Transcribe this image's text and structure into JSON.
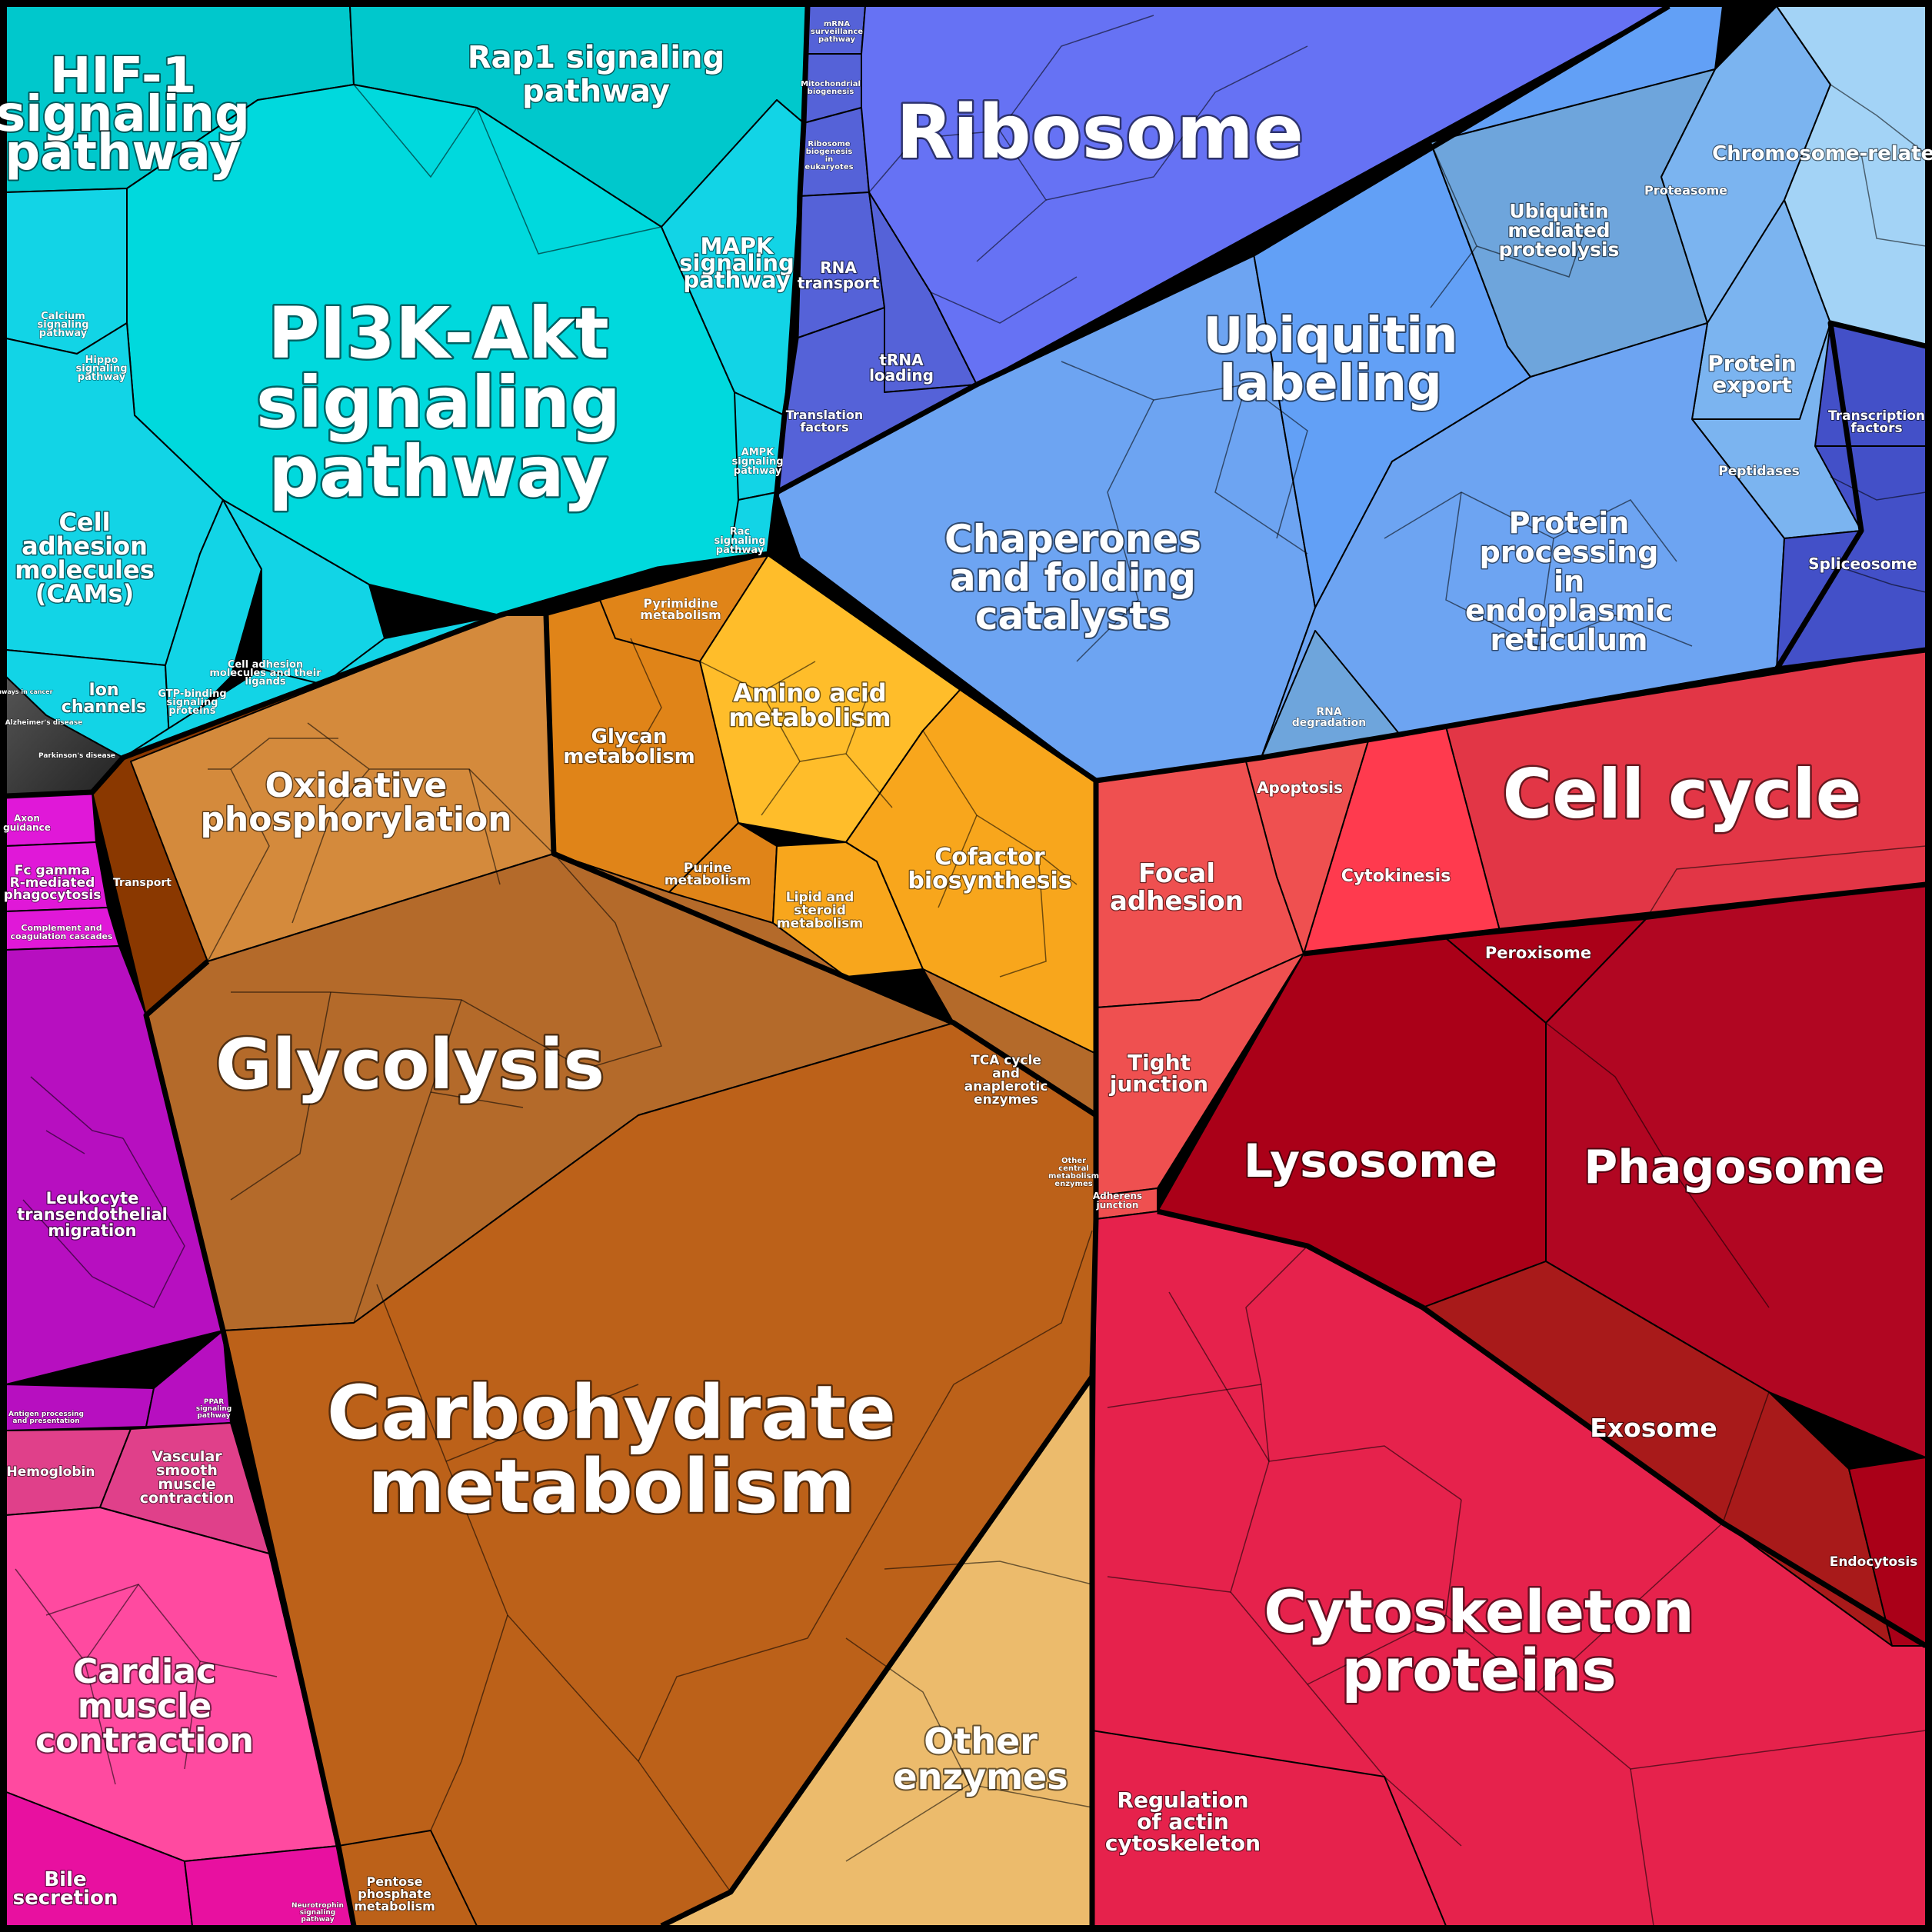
{
  "colors": {
    "signaling": "#00c8cc",
    "pi3k": "#00d9dd",
    "signaling_light": "#12d4e6",
    "ribosome": "#6672f4",
    "ribosome_dark": "#5562d8",
    "ubiquitin": "#62a0f6",
    "chaperones": "#6da4f2",
    "ubiq_proteolysis": "#6ea5dc",
    "proteasome": "#7bb4f0",
    "chromosome": "#a3d3f6",
    "spliceosome": "#4350c8",
    "cell_cycle": "#e23646",
    "cytoskeleton": "#e6224c",
    "lysosome": "#aa0018",
    "phagosome": "#b10622",
    "exosome": "#a81a1a",
    "focal": "#ef5050",
    "cytokinesis": "#ff3a4e",
    "carbohydrate": "#bc6119",
    "glycolysis": "#b46a2a",
    "oxidative": "#d48a3c",
    "glycan": "#e08418",
    "amino": "#ffbd2a",
    "cofactor": "#f8a61c",
    "other_enzymes": "#ecbb6c",
    "transport": "#8a3800",
    "leukocyte": "#b70fc0",
    "fc_gamma": "#e018d8",
    "cardiac": "#ff4aa0",
    "hemoglobin": "#e0408a",
    "bile": "#e810a0",
    "disease": "#3a3a3a"
  },
  "labels": {
    "hif1": "HIF-1 signaling pathway",
    "rap1": "Rap1 signaling pathway",
    "pi3k": "PI3K-Akt signaling pathway",
    "mapk": "MAPK signaling pathway",
    "cams": "Cell adhesion molecules (CAMs)",
    "ion": "Ion channels",
    "ampk": "AMPK signaling pathway",
    "rac": "Rac signaling pathway",
    "gtp": "GTP-binding signaling proteins",
    "cell_adhesion_ligands": "Cell adhesion molecules and their ligands",
    "hippo": "Hippo signaling pathway",
    "calcium": "Calcium signaling pathway",
    "ribosome": "Ribosome",
    "mrna": "mRNA surveillance pathway",
    "mito": "Mitochondrial biogenesis",
    "ribo_bio": "Ribosome biogenesis in eukaryotes",
    "rna_transport": "RNA transport",
    "trna": "tRNA loading",
    "translation": "Translation factors",
    "ubiquitin": "Ubiquitin labeling",
    "ubiq_prot": "Ubiquitin mediated proteolysis",
    "proteasome": "Proteasome",
    "chromosome": "Chromosome-related",
    "protein_export": "Protein export",
    "peptidases": "Peptidases",
    "transcription": "Transcription factors",
    "spliceosome": "Spliceosome",
    "chaperones": "Chaperones and folding catalysts",
    "protein_processing": "Protein processing in endoplasmic reticulum",
    "rna_deg": "RNA degradation",
    "cell_cycle": "Cell cycle",
    "apoptosis": "Apoptosis",
    "cytokinesis": "Cytokinesis",
    "focal": "Focal adhesion",
    "tight": "Tight junction",
    "adherens": "Adherens junction",
    "peroxisome": "Peroxisome",
    "lysosome": "Lysosome",
    "phagosome": "Phagosome",
    "exosome": "Exosome",
    "endocytosis": "Endocytosis",
    "cytoskeleton": "Cytoskeleton proteins",
    "reg_actin": "Regulation of actin cytoskeleton",
    "oxidative": "Oxidative phosphorylation",
    "glycan": "Glycan metabolism",
    "pyrimidine": "Pyrimidine metabolism",
    "amino": "Amino acid metabolism",
    "purine": "Purine metabolism",
    "lipid": "Lipid and steroid metabolism",
    "cofactor": "Cofactor biosynthesis",
    "tca": "TCA cycle and anaplerotic enzymes",
    "other_central": "Other central metabolism enzymes",
    "glycolysis": "Glycolysis",
    "carbohydrate": "Carbohydrate metabolism",
    "other_enzymes": "Other enzymes",
    "pentose": "Pentose phosphate metabolism",
    "transport": "Transport",
    "axon": "Axon guidance",
    "fc_gamma": "Fc gamma R-mediated phagocytosis",
    "complement": "Complement and coagulation cascades",
    "leukocyte": "Leukocyte transendothelial migration",
    "antigen": "Antigen processing and presentation",
    "ppar": "PPAR signaling pathway",
    "hemoglobin": "Hemoglobin",
    "vascular": "Vascular smooth muscle contraction",
    "cardiac": "Cardiac muscle contraction",
    "bile": "Bile secretion",
    "neurotrophin": "Neurotrophin signaling pathway",
    "alzheimer": "Alzheimer's disease",
    "parkinson": "Parkinson's disease",
    "pathways_cancer": "Pathways in cancer"
  }
}
